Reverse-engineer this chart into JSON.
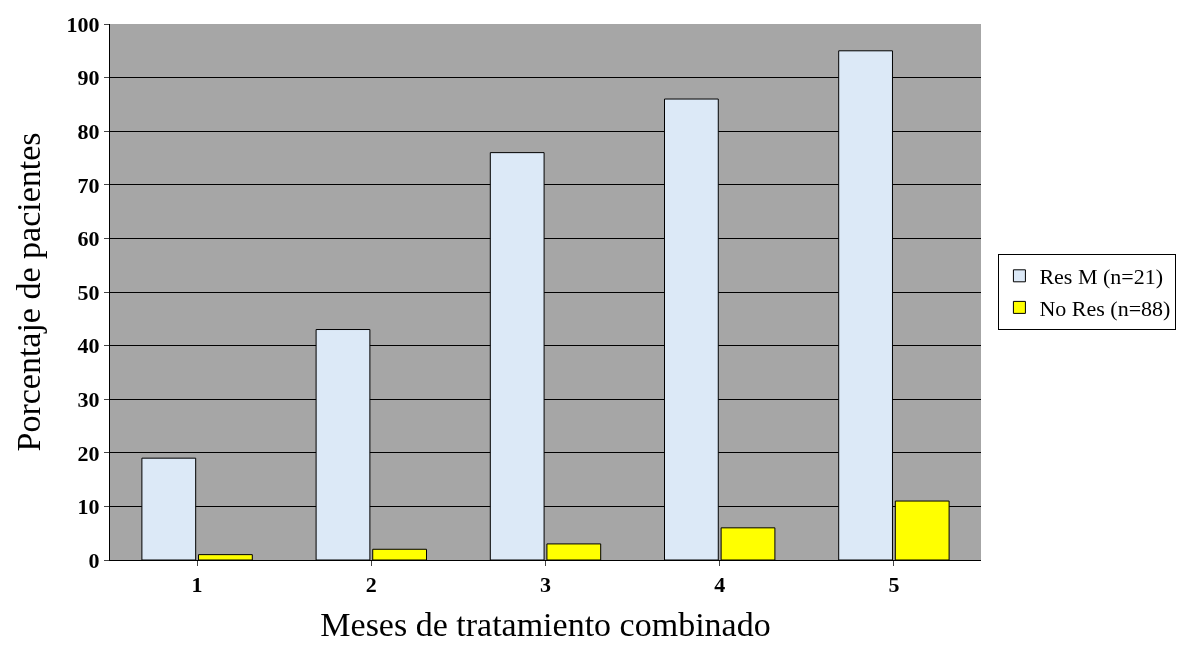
{
  "chart_data": {
    "type": "bar",
    "xlabel": "Meses de tratamiento combinado",
    "ylabel": "Porcentaje de pacientes",
    "categories": [
      "1",
      "2",
      "3",
      "4",
      "5"
    ],
    "series": [
      {
        "name": "Res M (n=21)",
        "color": "#dce9f7",
        "values": [
          19,
          43,
          76,
          86,
          95
        ]
      },
      {
        "name": "No Res (n=88)",
        "color": "#ffff00",
        "values": [
          1,
          2,
          3,
          6,
          11
        ]
      }
    ],
    "ylim": [
      0,
      100
    ],
    "yticks": [
      0,
      10,
      20,
      30,
      40,
      50,
      60,
      70,
      80,
      90,
      100
    ],
    "grid": "y",
    "legend": "right"
  }
}
